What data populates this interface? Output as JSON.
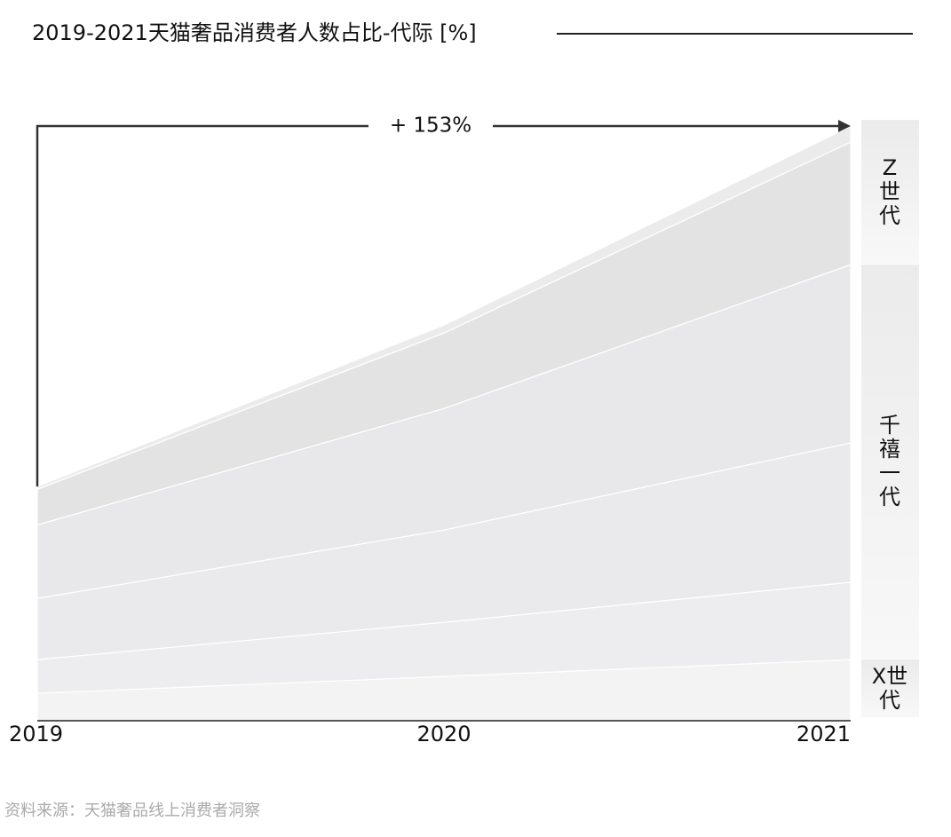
{
  "chart_data": {
    "type": "stacked_area",
    "title": "2019-2021天猫奢品消费者人数占比-代际 [%]",
    "annotation": "+ 153%",
    "source": "资料来源：天猫奢品线上消费者洞察",
    "categories": [
      "2019",
      "2020",
      "2021"
    ],
    "ylim": [
      0,
      255
    ],
    "groups": [
      {
        "name": "X世代",
        "series": [
          {
            "color": "#f3f3f4",
            "values": [
              11.7,
              18.9,
              26.1
            ]
          }
        ]
      },
      {
        "name": "千禧一代",
        "series": [
          {
            "color": "#ededef",
            "values": [
              14.4,
              23.1,
              33.0
            ]
          },
          {
            "color": "#eaeaec",
            "values": [
              26.1,
              39.4,
              59.5
            ]
          },
          {
            "color": "#e8e8ea",
            "values": [
              31.4,
              51.9,
              76.1
            ]
          }
        ]
      },
      {
        "name": "Z世代",
        "series": [
          {
            "color": "#e3e3e4",
            "values": [
              15.2,
              32.2,
              52.3
            ]
          },
          {
            "color": "#ebebec",
            "values": [
              1.2,
              3.4,
              6.8
            ]
          }
        ]
      }
    ]
  }
}
